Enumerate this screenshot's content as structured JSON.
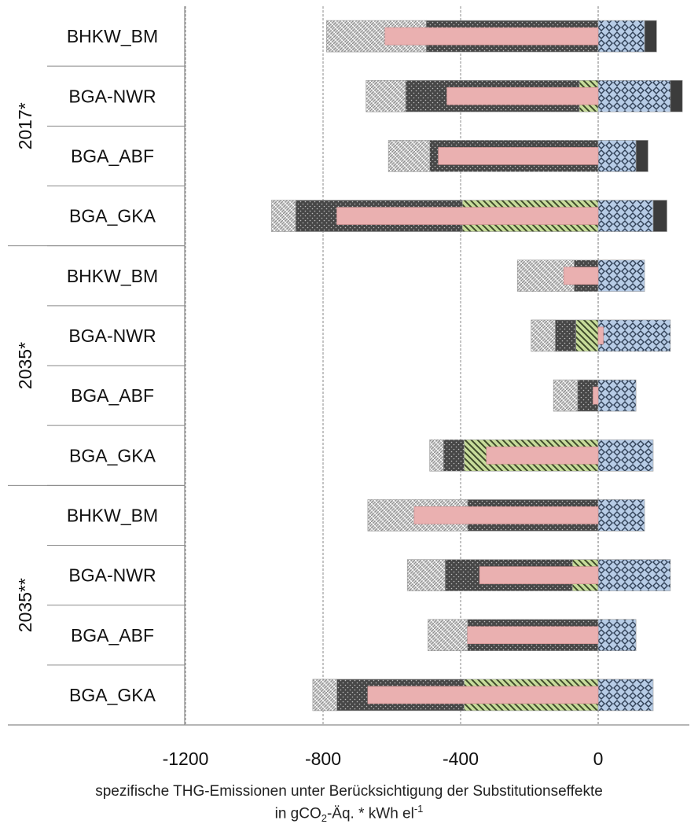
{
  "chart_data": {
    "type": "bar",
    "orientation": "horizontal",
    "stacked": true,
    "xlabel_parts": {
      "line1": "spezifische THG-Emissionen unter Berücksichtigung der Substitutionseffekte",
      "line2_prefix": "in gCO",
      "line2_sub": "2",
      "line2_mid": "-Äq. * kWh el",
      "line2_sup": "-1"
    },
    "xlim": [
      -1500,
      350
    ],
    "xticks": [
      -1200,
      -800,
      -400,
      0
    ],
    "xtick_labels": [
      "-1200",
      "-800",
      "-400",
      "0"
    ],
    "grid": "vertical dashed at ticks",
    "legend": "none shown",
    "groups": [
      {
        "label": "2017*",
        "categories": [
          "BHKW_BM",
          "BGA-NWR",
          "BGA_ABF",
          "BGA_GKA"
        ]
      },
      {
        "label": "2035*",
        "categories": [
          "BHKW_BM",
          "BGA-NWR",
          "BGA_ABF",
          "BGA_GKA"
        ]
      },
      {
        "label": "2035**",
        "categories": [
          "BHKW_BM",
          "BGA-NWR",
          "BGA_ABF",
          "BGA_GKA"
        ]
      }
    ],
    "series_styles": [
      {
        "key": "s1",
        "pattern": "light-grey-weave",
        "color": "#bdbdbd"
      },
      {
        "key": "s2",
        "pattern": "dark-grey-dots",
        "color": "#4d4d4d"
      },
      {
        "key": "s3",
        "pattern": "green-diagonal",
        "color": "#b6cf86"
      },
      {
        "key": "s4",
        "pattern": "blue-diamonds",
        "color": "#b7cce6"
      },
      {
        "key": "s5",
        "pattern": "dark-solid",
        "color": "#3f3f3f"
      },
      {
        "key": "net",
        "pattern": "pink-solid-thin",
        "color": "#eab0b0"
      }
    ],
    "rows": [
      {
        "group": "2017*",
        "category": "BHKW_BM",
        "s1": -290,
        "s2": -500,
        "s3": 0,
        "s4": 135,
        "s5": 35,
        "net": -620
      },
      {
        "group": "2017*",
        "category": "BGA-NWR",
        "s1": -115,
        "s2": -505,
        "s3": -55,
        "s4": 210,
        "s5": 35,
        "net": -440
      },
      {
        "group": "2017*",
        "category": "BGA_ABF",
        "s1": -120,
        "s2": -490,
        "s3": 0,
        "s4": 110,
        "s5": 35,
        "net": -465
      },
      {
        "group": "2017*",
        "category": "BGA_GKA",
        "s1": -70,
        "s2": -485,
        "s3": -395,
        "s4": 160,
        "s5": 40,
        "net": -760
      },
      {
        "group": "2035*",
        "category": "BHKW_BM",
        "s1": -165,
        "s2": -70,
        "s3": 0,
        "s4": 135,
        "s5": 0,
        "net": -100
      },
      {
        "group": "2035*",
        "category": "BGA-NWR",
        "s1": -70,
        "s2": -60,
        "s3": -65,
        "s4": 210,
        "s5": 0,
        "net": 15
      },
      {
        "group": "2035*",
        "category": "BGA_ABF",
        "s1": -70,
        "s2": -60,
        "s3": 0,
        "s4": 110,
        "s5": 0,
        "net": -15
      },
      {
        "group": "2035*",
        "category": "BGA_GKA",
        "s1": -40,
        "s2": -60,
        "s3": -390,
        "s4": 160,
        "s5": 0,
        "net": -325
      },
      {
        "group": "2035**",
        "category": "BHKW_BM",
        "s1": -290,
        "s2": -380,
        "s3": 0,
        "s4": 135,
        "s5": 0,
        "net": -535
      },
      {
        "group": "2035**",
        "category": "BGA-NWR",
        "s1": -110,
        "s2": -370,
        "s3": -75,
        "s4": 210,
        "s5": 0,
        "net": -345
      },
      {
        "group": "2035**",
        "category": "BGA_ABF",
        "s1": -115,
        "s2": -380,
        "s3": 0,
        "s4": 110,
        "s5": 0,
        "net": -380
      },
      {
        "group": "2035**",
        "category": "BGA_GKA",
        "s1": -70,
        "s2": -370,
        "s3": -390,
        "s4": 160,
        "s5": 0,
        "net": -670
      }
    ]
  }
}
